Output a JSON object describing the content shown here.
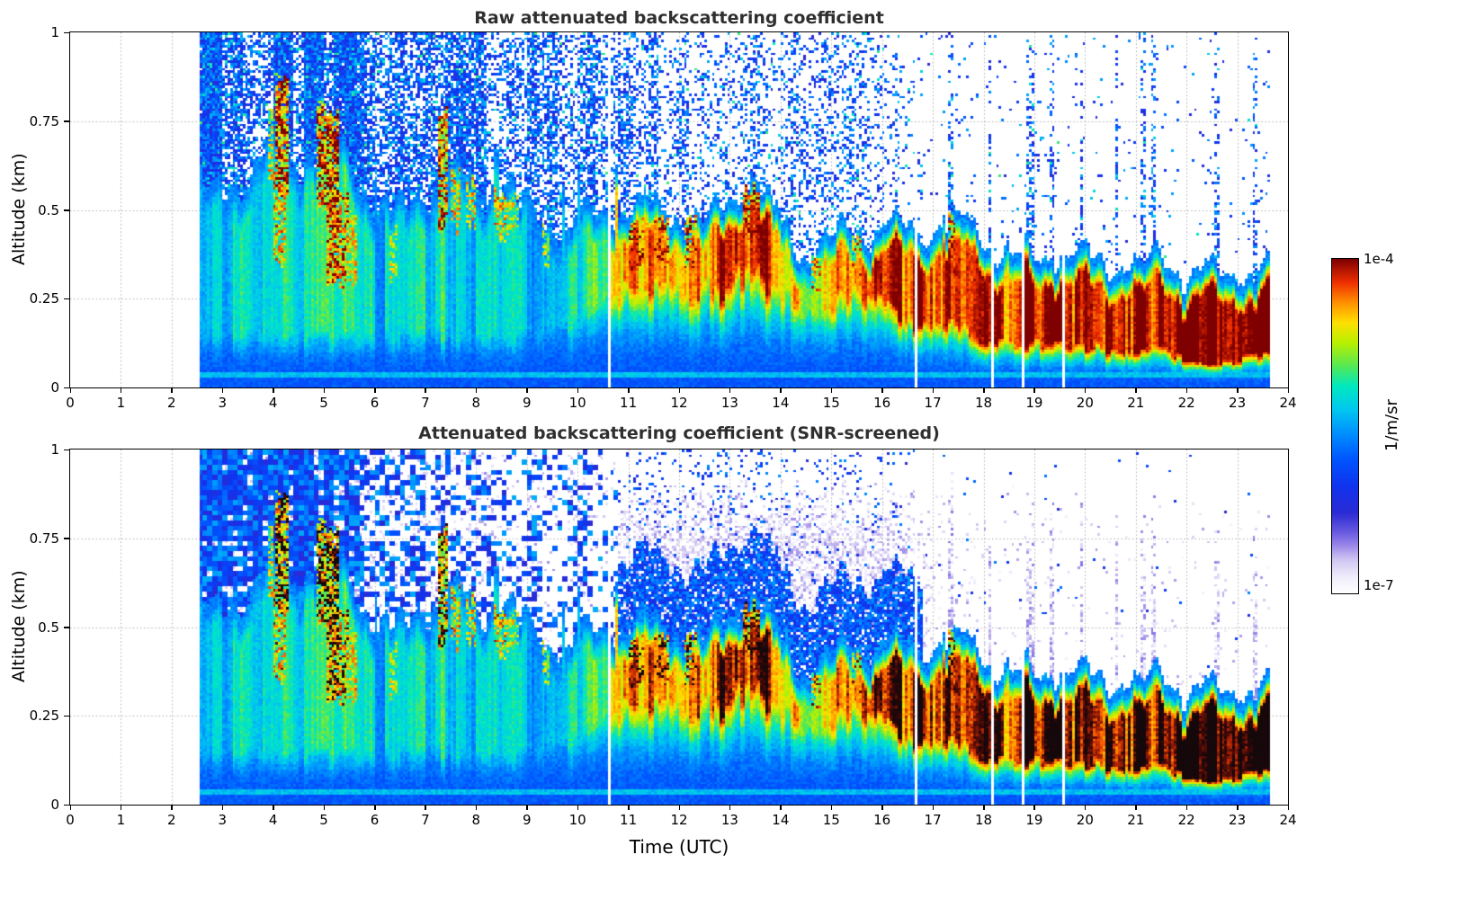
{
  "panels": [
    {
      "title": "Raw attenuated backscattering coefficient",
      "ylabel": "Altitude (km)"
    },
    {
      "title": "Attenuated backscattering coefficient (SNR-screened)",
      "ylabel": "Altitude (km)"
    }
  ],
  "xlabel": "Time (UTC)",
  "colorbar": {
    "max_label": "1e-4",
    "min_label": "1e-7",
    "units": "1/m/sr"
  },
  "chart_data": {
    "type": "heatmap",
    "titles": [
      "Raw attenuated backscattering coefficient",
      "Attenuated backscattering coefficient (SNR-screened)"
    ],
    "x_label": "Time (UTC)",
    "x_range": [
      0,
      24
    ],
    "x_ticks": [
      {
        "v": 0,
        "label": "0"
      },
      {
        "v": 1,
        "label": "1"
      },
      {
        "v": 2,
        "label": "2"
      },
      {
        "v": 3,
        "label": "3"
      },
      {
        "v": 4,
        "label": "4"
      },
      {
        "v": 5,
        "label": "5"
      },
      {
        "v": 6,
        "label": "6"
      },
      {
        "v": 7,
        "label": "7"
      },
      {
        "v": 8,
        "label": "8"
      },
      {
        "v": 9,
        "label": "9"
      },
      {
        "v": 10,
        "label": "10"
      },
      {
        "v": 11,
        "label": "11"
      },
      {
        "v": 12,
        "label": "12"
      },
      {
        "v": 13,
        "label": "13"
      },
      {
        "v": 14,
        "label": "14"
      },
      {
        "v": 15,
        "label": "15"
      },
      {
        "v": 16,
        "label": "16"
      },
      {
        "v": 17,
        "label": "17"
      },
      {
        "v": 18,
        "label": "18"
      },
      {
        "v": 19,
        "label": "19"
      },
      {
        "v": 20,
        "label": "20"
      },
      {
        "v": 21,
        "label": "21"
      },
      {
        "v": 22,
        "label": "22"
      },
      {
        "v": 23,
        "label": "23"
      },
      {
        "v": 24,
        "label": "24"
      }
    ],
    "y_label": "Altitude (km)",
    "y_range": [
      0,
      1
    ],
    "y_ticks": [
      {
        "v": 0,
        "label": "0"
      },
      {
        "v": 0.25,
        "label": "0.25"
      },
      {
        "v": 0.5,
        "label": "0.5"
      },
      {
        "v": 0.75,
        "label": "0.75"
      },
      {
        "v": 1,
        "label": "1"
      }
    ],
    "grid": {
      "show": true,
      "style": "dotted",
      "color": "#7d7d7d"
    },
    "color_scale": {
      "type": "log",
      "min": 1e-07,
      "max": 0.0001,
      "units": "1/m/sr",
      "stops": [
        [
          0.0,
          "#ffffff"
        ],
        [
          0.05,
          "#efecfa"
        ],
        [
          0.1,
          "#cfc5f2"
        ],
        [
          0.14,
          "#9d8ae9"
        ],
        [
          0.18,
          "#6b5ce0"
        ],
        [
          0.24,
          "#2b2bd5"
        ],
        [
          0.32,
          "#1133ee"
        ],
        [
          0.4,
          "#0055ff"
        ],
        [
          0.48,
          "#0091ff"
        ],
        [
          0.55,
          "#00c8f0"
        ],
        [
          0.62,
          "#00e8c0"
        ],
        [
          0.68,
          "#55e855"
        ],
        [
          0.75,
          "#b8f000"
        ],
        [
          0.81,
          "#ffe000"
        ],
        [
          0.87,
          "#ff9000"
        ],
        [
          0.93,
          "#f03000"
        ],
        [
          1.0,
          "#7f0000"
        ]
      ]
    },
    "data_extent_utc": [
      2.55,
      23.65
    ],
    "layer_profile": {
      "t": [
        2.5,
        3.0,
        3.5,
        4.0,
        4.5,
        5.0,
        5.5,
        6.0,
        6.5,
        7.0,
        7.5,
        8.0,
        8.5,
        9.0,
        9.5,
        10.0,
        10.5,
        11.0,
        11.5,
        12.0,
        12.5,
        13.0,
        13.3,
        13.6,
        14.0,
        14.5,
        15.0,
        15.5,
        16.0,
        16.5,
        17.0,
        17.5,
        18.0,
        18.5,
        19.0,
        19.5,
        20.0,
        20.5,
        21.0,
        21.5,
        22.0,
        22.5,
        23.0,
        23.6
      ],
      "top_km": [
        0.55,
        0.52,
        0.58,
        0.66,
        0.6,
        0.68,
        0.6,
        0.5,
        0.46,
        0.52,
        0.58,
        0.52,
        0.55,
        0.48,
        0.42,
        0.44,
        0.47,
        0.5,
        0.48,
        0.47,
        0.44,
        0.5,
        0.56,
        0.55,
        0.44,
        0.36,
        0.4,
        0.44,
        0.42,
        0.44,
        0.42,
        0.46,
        0.4,
        0.35,
        0.35,
        0.37,
        0.35,
        0.34,
        0.32,
        0.35,
        0.3,
        0.29,
        0.3,
        0.32
      ],
      "core_bottom_km": [
        0.15,
        0.15,
        0.15,
        0.15,
        0.15,
        0.15,
        0.15,
        0.15,
        0.15,
        0.15,
        0.15,
        0.15,
        0.15,
        0.15,
        0.16,
        0.18,
        0.25,
        0.28,
        0.28,
        0.28,
        0.27,
        0.3,
        0.33,
        0.32,
        0.26,
        0.22,
        0.24,
        0.26,
        0.25,
        0.18,
        0.16,
        0.18,
        0.14,
        0.12,
        0.12,
        0.13,
        0.12,
        0.11,
        0.1,
        0.11,
        0.08,
        0.07,
        0.08,
        0.1
      ],
      "peak_u": [
        0.55,
        0.55,
        0.58,
        0.6,
        0.58,
        0.62,
        0.6,
        0.55,
        0.55,
        0.58,
        0.6,
        0.58,
        0.58,
        0.55,
        0.55,
        0.6,
        0.7,
        0.88,
        0.9,
        0.88,
        0.85,
        0.88,
        0.92,
        0.9,
        0.85,
        0.82,
        0.85,
        0.85,
        0.85,
        0.95,
        0.98,
        0.98,
        1.0,
        1.0,
        1.0,
        1.0,
        1.0,
        1.0,
        1.0,
        1.0,
        1.0,
        1.0,
        1.0,
        1.0
      ],
      "noise_density_raw": [
        0.92,
        0.9,
        0.88,
        0.88,
        0.85,
        0.85,
        0.8,
        0.72,
        0.68,
        0.68,
        0.65,
        0.6,
        0.58,
        0.52,
        0.48,
        0.45,
        0.42,
        0.4,
        0.38,
        0.36,
        0.35,
        0.38,
        0.38,
        0.36,
        0.3,
        0.28,
        0.3,
        0.28,
        0.24,
        0.12,
        0.04,
        0.04,
        0.03,
        0.04,
        0.05,
        0.04,
        0.02,
        0.02,
        0.03,
        0.03,
        0.02,
        0.02,
        0.02,
        0.03
      ],
      "noise_density_screened": [
        0.9,
        0.88,
        0.8,
        0.85,
        0.8,
        0.82,
        0.7,
        0.55,
        0.5,
        0.55,
        0.5,
        0.45,
        0.42,
        0.4,
        0.35,
        0.32,
        0.3,
        0.28,
        0.27,
        0.26,
        0.25,
        0.26,
        0.26,
        0.25,
        0.2,
        0.2,
        0.2,
        0.18,
        0.15,
        0.06,
        0.02,
        0.02,
        0.015,
        0.02,
        0.02,
        0.02,
        0.01,
        0.01,
        0.015,
        0.015,
        0.01,
        0.01,
        0.01,
        0.015
      ],
      "haze_density_screened": [
        0,
        0,
        0,
        0,
        0,
        0,
        0,
        0,
        0,
        0,
        0,
        0,
        0,
        0.1,
        0.25,
        0.3,
        0.35,
        0.45,
        0.5,
        0.5,
        0.5,
        0.55,
        0.55,
        0.55,
        0.5,
        0.45,
        0.5,
        0.5,
        0.45,
        0.3,
        0.12,
        0.05,
        0.03,
        0.03,
        0.03,
        0.03,
        0.02,
        0.02,
        0.02,
        0.02,
        0.02,
        0.02,
        0.02,
        0.02
      ]
    },
    "plumes": [
      [
        3.9,
        4.0,
        0.6,
        0.8,
        0.75
      ],
      [
        4.05,
        4.3,
        0.55,
        0.88,
        0.92
      ],
      [
        4.0,
        4.25,
        0.35,
        0.6,
        0.8
      ],
      [
        4.85,
        5.05,
        0.5,
        0.8,
        0.9
      ],
      [
        5.05,
        5.3,
        0.3,
        0.78,
        0.95
      ],
      [
        5.3,
        5.5,
        0.28,
        0.55,
        0.85
      ],
      [
        5.5,
        5.65,
        0.3,
        0.5,
        0.75
      ],
      [
        6.3,
        6.45,
        0.3,
        0.45,
        0.7
      ],
      [
        7.25,
        7.45,
        0.45,
        0.78,
        0.88
      ],
      [
        7.5,
        7.7,
        0.45,
        0.6,
        0.78
      ],
      [
        7.8,
        8.0,
        0.45,
        0.58,
        0.75
      ],
      [
        8.35,
        8.6,
        0.42,
        0.55,
        0.78
      ],
      [
        8.6,
        8.85,
        0.45,
        0.55,
        0.72
      ],
      [
        9.3,
        9.45,
        0.35,
        0.45,
        0.68
      ],
      [
        11.0,
        11.3,
        0.33,
        0.47,
        0.88
      ],
      [
        11.5,
        11.8,
        0.35,
        0.48,
        0.86
      ],
      [
        12.1,
        12.35,
        0.35,
        0.48,
        0.85
      ],
      [
        13.25,
        13.6,
        0.42,
        0.56,
        0.92
      ],
      [
        14.6,
        14.8,
        0.28,
        0.38,
        0.8
      ],
      [
        15.4,
        15.6,
        0.3,
        0.42,
        0.8
      ],
      [
        17.3,
        17.45,
        0.3,
        0.48,
        0.85
      ]
    ],
    "gaps_utc": [
      3.35,
      4.15,
      5.2,
      5.55,
      6.05,
      7.3,
      8.15,
      8.55,
      9.2,
      9.55,
      10.3,
      10.62,
      11.05,
      11.5,
      12.2,
      12.45,
      13.1,
      13.85,
      14.2,
      14.55,
      14.75,
      14.95,
      15.15,
      15.35,
      15.6,
      16.05,
      16.3,
      16.55,
      16.68,
      17.55,
      18.18,
      18.78,
      19.25,
      19.58,
      20.15,
      21.05,
      21.45,
      22.3
    ],
    "noisy_columns_utc": [
      [
        17.28,
        17.38
      ],
      [
        18.08,
        18.16
      ],
      [
        18.85,
        19.0
      ],
      [
        19.3,
        19.4
      ],
      [
        19.9,
        19.97
      ],
      [
        20.6,
        20.66
      ],
      [
        21.1,
        21.18
      ],
      [
        21.3,
        21.4
      ],
      [
        22.55,
        22.65
      ],
      [
        23.3,
        23.38
      ]
    ],
    "features": {
      "data_coverage": "No data before ~02:30 UTC; measurements span ~02:30-23:40 UTC with many narrow vertical dropout gaps",
      "raw_panel": "Dense blue noise speckle fills altitudes above the layer, strongest before ~10 UTC and fading after ~16:30 UTC",
      "boundary_layer": "Strongly scattering layer (~1e-4 1/m/sr, red) near 0.3-0.5 km from ~11 UTC, descending to ~0.1-0.3 km by 18-23.5 UTC",
      "plumes": "Elevated strong-backscatter plumes around 04:00-05:30 and 07:30-09:00 UTC reaching 0.6-0.9 km",
      "screened_panel": "SNR screening removes most high-altitude speckle leaving faint pale residuals; saturated layer core renders near-black"
    }
  }
}
